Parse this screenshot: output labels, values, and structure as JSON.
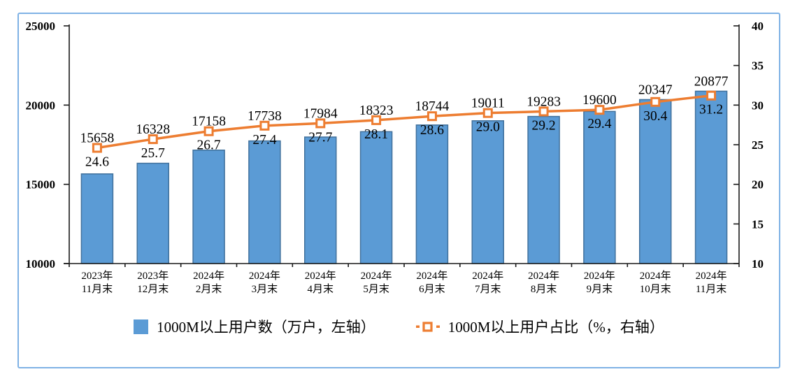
{
  "frame": {
    "border_color": "#7FB2E5",
    "background": "#FFFFFF"
  },
  "chart_data": {
    "type": "bar+line combo",
    "title": "",
    "grid": false,
    "legend_position": "bottom",
    "categories": [
      [
        "2023年",
        "11月末"
      ],
      [
        "2023年",
        "12月末"
      ],
      [
        "2024年",
        "2月末"
      ],
      [
        "2024年",
        "3月末"
      ],
      [
        "2024年",
        "4月末"
      ],
      [
        "2024年",
        "5月末"
      ],
      [
        "2024年",
        "6月末"
      ],
      [
        "2024年",
        "7月末"
      ],
      [
        "2024年",
        "8月末"
      ],
      [
        "2024年",
        "9月末"
      ],
      [
        "2024年",
        "10月末"
      ],
      [
        "2024年",
        "11月末"
      ]
    ],
    "series": [
      {
        "name": "1000M以上用户数（万户，左轴）",
        "type": "bar",
        "axis": "left",
        "values": [
          15658,
          16328,
          17158,
          17738,
          17984,
          18323,
          18744,
          19011,
          19283,
          19600,
          20347,
          20877
        ],
        "labels": [
          "15658",
          "16328",
          "17158",
          "17738",
          "17984",
          "18323",
          "18744",
          "19011",
          "19283",
          "19600",
          "20347",
          "20877"
        ],
        "fill_color": "#5B9BD5",
        "stroke_color": "#41719C"
      },
      {
        "name": "1000M以上用户占比（%，右轴）",
        "type": "line",
        "axis": "right",
        "values": [
          24.6,
          25.7,
          26.7,
          27.4,
          27.7,
          28.1,
          28.6,
          29.0,
          29.2,
          29.4,
          30.4,
          31.2
        ],
        "labels": [
          "24.6",
          "25.7",
          "26.7",
          "27.4",
          "27.7",
          "28.1",
          "28.6",
          "29.0",
          "29.2",
          "29.4",
          "30.4",
          "31.2"
        ],
        "line_color": "#ED7D31",
        "marker": "hollow-square"
      }
    ],
    "left_axis": {
      "min": 10000,
      "max": 25000,
      "step": 5000,
      "ticks": [
        "10000",
        "15000",
        "20000",
        "25000"
      ]
    },
    "right_axis": {
      "min": 10,
      "max": 40,
      "step": 5,
      "ticks": [
        "10",
        "15",
        "20",
        "25",
        "30",
        "35",
        "40"
      ]
    },
    "axis_color": "#1a1a1a",
    "label_color": "#000000"
  },
  "legend": {
    "items": [
      {
        "label": "1000M以上用户数（万户，左轴）",
        "swatch": "bar"
      },
      {
        "label": "1000M以上用户占比（%，右轴）",
        "swatch": "line-marker"
      }
    ]
  }
}
